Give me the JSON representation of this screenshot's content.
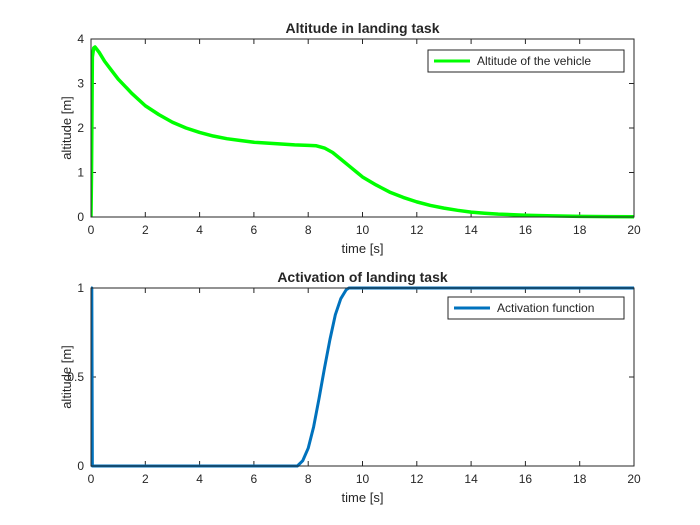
{
  "chart_data": [
    {
      "type": "line",
      "title": "Altitude in landing task",
      "xlabel": "time [s]",
      "ylabel": "altitude [m]",
      "xlim": [
        0,
        20
      ],
      "ylim": [
        0,
        4
      ],
      "xticks": [
        0,
        2,
        4,
        6,
        8,
        10,
        12,
        14,
        16,
        18,
        20
      ],
      "yticks": [
        0,
        1,
        2,
        3,
        4
      ],
      "grid": false,
      "legend_position": "top-right",
      "series": [
        {
          "name": "Altitude of the vehicle",
          "color": "#00ff00",
          "x": [
            0,
            0.02,
            0.05,
            0.1,
            0.15,
            0.2,
            0.3,
            0.5,
            0.75,
            1,
            1.5,
            2,
            2.5,
            3,
            3.5,
            4,
            4.5,
            5,
            5.5,
            6,
            6.5,
            7,
            7.5,
            8,
            8.3,
            8.6,
            8.9,
            9.2,
            9.5,
            9.8,
            10,
            10.5,
            11,
            11.5,
            12,
            12.5,
            13,
            13.5,
            14,
            14.5,
            15,
            16,
            17,
            18,
            19,
            20
          ],
          "y": [
            0,
            1.0,
            3.6,
            3.8,
            3.82,
            3.78,
            3.7,
            3.5,
            3.3,
            3.1,
            2.78,
            2.5,
            2.3,
            2.13,
            2.0,
            1.9,
            1.82,
            1.76,
            1.72,
            1.68,
            1.66,
            1.64,
            1.62,
            1.61,
            1.6,
            1.55,
            1.45,
            1.3,
            1.15,
            1.0,
            0.9,
            0.72,
            0.56,
            0.44,
            0.34,
            0.26,
            0.2,
            0.15,
            0.11,
            0.085,
            0.065,
            0.04,
            0.025,
            0.015,
            0.008,
            0.005
          ]
        }
      ]
    },
    {
      "type": "line",
      "title": "Activation of landing task",
      "xlabel": "time [s]",
      "ylabel": "altitude [m]",
      "xlim": [
        0,
        20
      ],
      "ylim": [
        0,
        1
      ],
      "xticks": [
        0,
        2,
        4,
        6,
        8,
        10,
        12,
        14,
        16,
        18,
        20
      ],
      "yticks": [
        0,
        0.5,
        1
      ],
      "grid": false,
      "legend_position": "top-right",
      "series": [
        {
          "name": "Activation function",
          "color": "#0072bd",
          "x": [
            0,
            0.001,
            0.03,
            0.05,
            7.6,
            7.8,
            8.0,
            8.2,
            8.4,
            8.6,
            8.8,
            9.0,
            9.2,
            9.4,
            9.5,
            20
          ],
          "y": [
            1,
            1,
            1,
            0,
            0,
            0.03,
            0.1,
            0.22,
            0.38,
            0.55,
            0.71,
            0.85,
            0.94,
            0.99,
            1,
            1
          ]
        }
      ]
    }
  ]
}
